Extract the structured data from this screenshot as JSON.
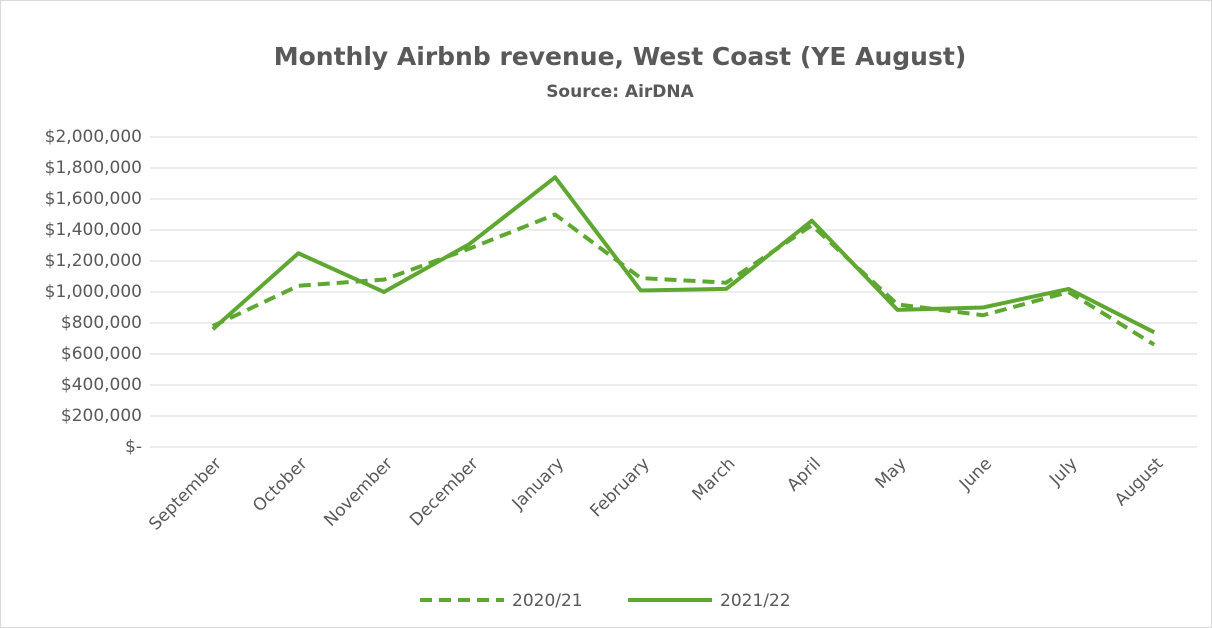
{
  "chart_data": {
    "type": "line",
    "title": "Monthly Airbnb revenue, West Coast (YE August)",
    "subtitle": "Source: AirDNA",
    "categories": [
      "September",
      "October",
      "November",
      "December",
      "January",
      "February",
      "March",
      "April",
      "May",
      "June",
      "July",
      "August"
    ],
    "series": [
      {
        "name": "2020/21",
        "color": "#5ea832",
        "dashed": true,
        "values": [
          780000,
          1040000,
          1080000,
          1280000,
          1500000,
          1090000,
          1060000,
          1430000,
          920000,
          850000,
          1000000,
          660000
        ]
      },
      {
        "name": "2021/22",
        "color": "#5ea832",
        "dashed": false,
        "values": [
          760000,
          1250000,
          1000000,
          1310000,
          1740000,
          1010000,
          1020000,
          1460000,
          885000,
          900000,
          1020000,
          740000
        ]
      }
    ],
    "ylim": [
      0,
      2000000
    ],
    "yticks": [
      {
        "value": 0,
        "label": "$-"
      },
      {
        "value": 200000,
        "label": "$200,000"
      },
      {
        "value": 400000,
        "label": "$400,000"
      },
      {
        "value": 600000,
        "label": "$600,000"
      },
      {
        "value": 800000,
        "label": "$800,000"
      },
      {
        "value": 1000000,
        "label": "$1,000,000"
      },
      {
        "value": 1200000,
        "label": "$1,200,000"
      },
      {
        "value": 1400000,
        "label": "$1,400,000"
      },
      {
        "value": 1600000,
        "label": "$1,600,000"
      },
      {
        "value": 1800000,
        "label": "$1,800,000"
      },
      {
        "value": 2000000,
        "label": "$2,000,000"
      }
    ],
    "grid": true,
    "legend": "bottom"
  }
}
